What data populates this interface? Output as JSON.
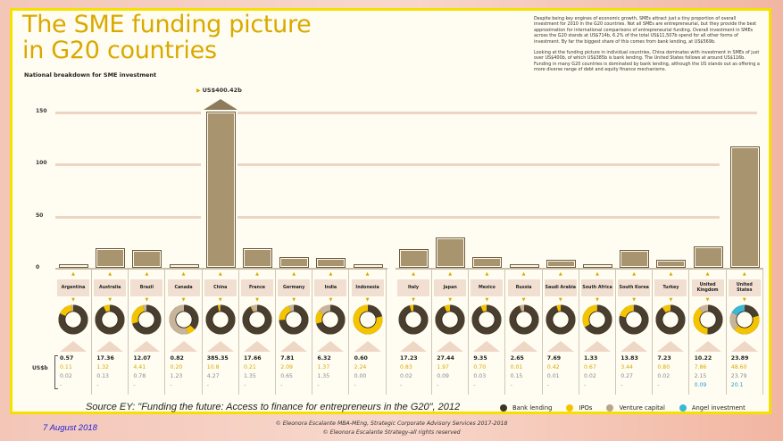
{
  "title": "The SME funding picture in G20 countries",
  "subtitle": "National breakdown for SME investment",
  "intro": [
    "Despite being key engines of economic growth, SMEs attract just a tiny proportion of overall investment for 2010 in the G20 countries. Not all SMEs are entrepreneurial, but they provide the best approximation for international comparisons of entrepreneurial funding. Overall investment in SMEs across the G20 stands at US$714b, 6.2% of the total US$11,507b spend for all other forms of investment. By far the biggest share of this comes from bank lending, at US$569b.",
    "Looking at the funding picture in individual countries, China dominates with investment in SMEs of just over US$400b, of which US$385b is bank lending. The United States follows at around US$116b. Funding in many G20 countries is dominated by bank lending, although the US stands out as offering a more diverse range of debt and equity finance mechanisms."
  ],
  "china_callout": "US$400.42b",
  "unit_label": "US$b",
  "colors": {
    "bank_lending": "#4a3f2f",
    "ipos": "#f5c400",
    "venture_capital": "#c8b49a",
    "angel_investment": "#3ab8d8",
    "bar": "#a8946f",
    "title": "#d9a900",
    "panel_border": "#f5e100"
  },
  "legend": [
    {
      "label": "Bank lending",
      "color": "#3d3428"
    },
    {
      "label": "IPOs",
      "color": "#f5c400"
    },
    {
      "label": "Venture capital",
      "color": "#b9a58a"
    },
    {
      "label": "Angel investment",
      "color": "#3ab8d8"
    }
  ],
  "source": "Source EY: \"Funding the future: Access to finance for entrepreneurs in the G20\", 2012",
  "footer": {
    "date": "7 August 2018",
    "copyright1": "© Eleonora Escalante MBA-MEng, Strategic Corporate Advisory Services 2017-2018",
    "copyright2": "© Eleonora Escalante Strategy-all rights reserved"
  },
  "chart_data": {
    "type": "bar",
    "title": "The SME funding picture in G20 countries",
    "subtitle": "National breakdown for SME investment",
    "xlabel": "",
    "ylabel": "US$b",
    "ylim": [
      0,
      150
    ],
    "yticks": [
      0,
      50,
      100,
      150
    ],
    "grid": true,
    "legend_position": "bottom-right",
    "annotations": [
      "China bar truncated: US$400.42b"
    ],
    "categories": [
      "Argentina",
      "Australia",
      "Brazil",
      "Canada",
      "China",
      "France",
      "Germany",
      "India",
      "Indonesia",
      "Italy",
      "Japan",
      "Mexico",
      "Russia",
      "Saudi Arabia",
      "South Africa",
      "South Korea",
      "Turkey",
      "United Kingdom",
      "United States"
    ],
    "series": [
      {
        "name": "Bank lending",
        "values": [
          "0.57",
          "17.36",
          "12.07",
          "0.82",
          "385.35",
          "17.66",
          "7.81",
          "6.32",
          "0.60",
          "17.23",
          "27.44",
          "9.35",
          "2.65",
          "7.69",
          "1.33",
          "13.83",
          "7.23",
          "10.22",
          "23.89"
        ]
      },
      {
        "name": "IPOs",
        "values": [
          "0.11",
          "1.32",
          "4.41",
          "0.20",
          "10.8",
          "0.21",
          "2.09",
          "1.37",
          "2.24",
          "0.83",
          "1.97",
          "0.70",
          "0.01",
          "0.42",
          "0.67",
          "3.44",
          "0.80",
          "7.86",
          "48.60"
        ]
      },
      {
        "name": "Venture capital",
        "values": [
          "0.02",
          "0.13",
          "0.78",
          "1.23",
          "4.27",
          "1.35",
          "0.65",
          "1.35",
          "0.00",
          "0.02",
          "0.09",
          "0.03",
          "0.15",
          "0.01",
          "0.02",
          "0.27",
          "0.02",
          "2.15",
          "23.79"
        ]
      },
      {
        "name": "Angel investment",
        "values": [
          "-",
          "-",
          "-",
          "-",
          "-",
          "-",
          "-",
          "-",
          "-",
          "-",
          "-",
          "-",
          "-",
          "-",
          "-",
          "-",
          "-",
          "0.09",
          "20.1"
        ]
      }
    ],
    "totals": [
      0.7,
      18.81,
      17.26,
      2.25,
      400.42,
      19.22,
      10.55,
      9.04,
      2.84,
      18.08,
      29.5,
      10.08,
      2.81,
      8.12,
      2.02,
      17.54,
      8.05,
      20.32,
      116.38
    ]
  }
}
